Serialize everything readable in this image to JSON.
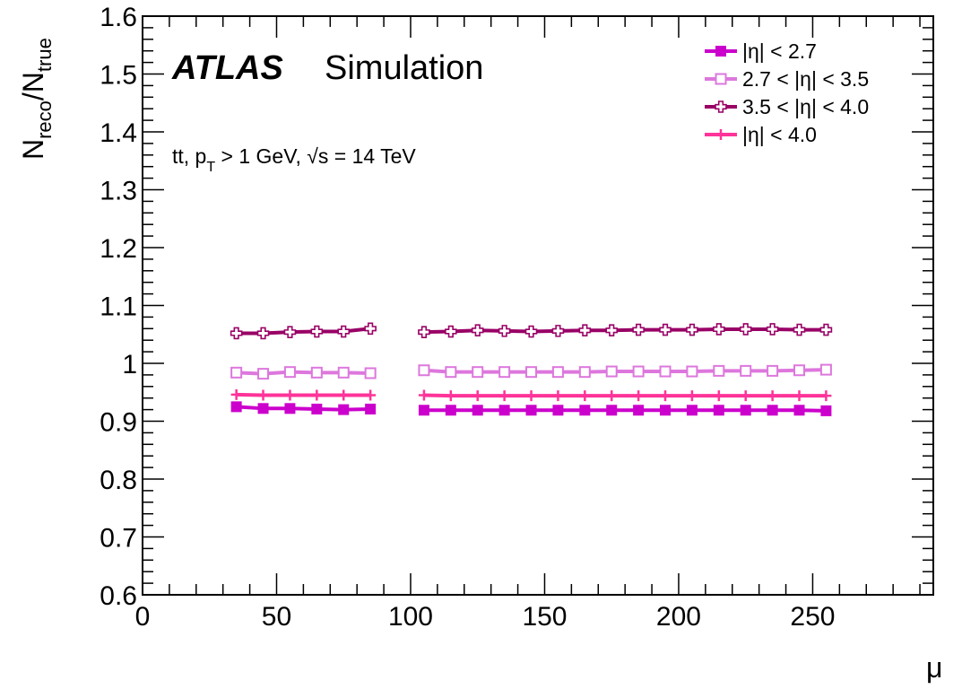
{
  "chart_data": {
    "type": "line",
    "title": "",
    "experiment": "ATLAS",
    "label": "Simulation",
    "info_text": {
      "process": "tt, p",
      "pt_sub": "T",
      "cut": " > 1 GeV, ",
      "sqrt": "√",
      "energy": "s = 14 TeV"
    },
    "xlabel": "μ",
    "ylabel": {
      "num": "N",
      "num_sub": "reco",
      "slash": "/N",
      "den_sub": "true"
    },
    "xlim": [
      0,
      295
    ],
    "ylim": [
      0.6,
      1.6
    ],
    "x_ticks": [
      0,
      50,
      100,
      150,
      200,
      250
    ],
    "x_tick_labels": [
      "0",
      "50",
      "100",
      "150",
      "200",
      "250"
    ],
    "y_ticks": [
      0.6,
      0.7,
      0.8,
      0.9,
      1.0,
      1.1,
      1.2,
      1.3,
      1.4,
      1.5,
      1.6
    ],
    "y_tick_labels": [
      "0.6",
      "0.7",
      "0.8",
      "0.9",
      "1",
      "1.1",
      "1.2",
      "1.3",
      "1.4",
      "1.5",
      "1.6"
    ],
    "legend_position": "top-right",
    "series": [
      {
        "name": "|η| < 2.7",
        "color": "#cc00cc",
        "marker": "filled-square",
        "segments": [
          {
            "x": [
              35,
              45,
              55,
              65,
              75,
              85
            ],
            "y": [
              0.925,
              0.922,
              0.922,
              0.921,
              0.92,
              0.921
            ]
          },
          {
            "x": [
              105,
              115,
              125,
              135,
              145,
              155,
              165,
              175,
              185,
              195,
              205,
              215,
              225,
              235,
              245,
              255
            ],
            "y": [
              0.919,
              0.919,
              0.919,
              0.919,
              0.919,
              0.919,
              0.919,
              0.919,
              0.919,
              0.919,
              0.919,
              0.919,
              0.919,
              0.919,
              0.919,
              0.918
            ]
          }
        ]
      },
      {
        "name": "2.7 < |η| < 3.5",
        "color": "#dd77dd",
        "marker": "open-square",
        "segments": [
          {
            "x": [
              35,
              45,
              55,
              65,
              75,
              85
            ],
            "y": [
              0.984,
              0.982,
              0.985,
              0.984,
              0.984,
              0.983
            ]
          },
          {
            "x": [
              105,
              115,
              125,
              135,
              145,
              155,
              165,
              175,
              185,
              195,
              205,
              215,
              225,
              235,
              245,
              255
            ],
            "y": [
              0.988,
              0.985,
              0.985,
              0.985,
              0.985,
              0.985,
              0.985,
              0.986,
              0.986,
              0.986,
              0.986,
              0.987,
              0.987,
              0.987,
              0.988,
              0.989
            ]
          }
        ]
      },
      {
        "name": " 3.5 < |η| < 4.0",
        "color": "#990066",
        "marker": "open-cross",
        "segments": [
          {
            "x": [
              35,
              45,
              55,
              65,
              75,
              85
            ],
            "y": [
              1.052,
              1.052,
              1.054,
              1.055,
              1.055,
              1.06
            ]
          },
          {
            "x": [
              105,
              115,
              125,
              135,
              145,
              155,
              165,
              175,
              185,
              195,
              205,
              215,
              225,
              235,
              245,
              255
            ],
            "y": [
              1.054,
              1.055,
              1.057,
              1.056,
              1.055,
              1.056,
              1.057,
              1.057,
              1.058,
              1.058,
              1.058,
              1.059,
              1.059,
              1.059,
              1.058,
              1.058
            ]
          }
        ]
      },
      {
        "name": "|η| < 4.0",
        "color": "#ff3399",
        "marker": "plus",
        "segments": [
          {
            "x": [
              35,
              45,
              55,
              65,
              75,
              85
            ],
            "y": [
              0.946,
              0.945,
              0.945,
              0.945,
              0.945,
              0.945
            ]
          },
          {
            "x": [
              105,
              115,
              125,
              135,
              145,
              155,
              165,
              175,
              185,
              195,
              205,
              215,
              225,
              235,
              245,
              255
            ],
            "y": [
              0.945,
              0.944,
              0.944,
              0.944,
              0.944,
              0.944,
              0.944,
              0.944,
              0.944,
              0.944,
              0.944,
              0.944,
              0.944,
              0.944,
              0.944,
              0.944
            ]
          }
        ]
      }
    ]
  }
}
